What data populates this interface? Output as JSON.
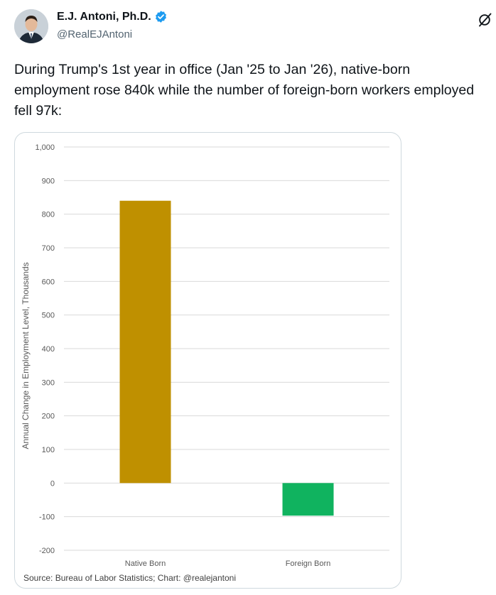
{
  "author": {
    "display_name": "E.J. Antoni, Ph.D.",
    "handle": "@RealEJAntoni",
    "verified": true
  },
  "icons": {
    "verified": "verified-badge-icon",
    "more": "grok-icon",
    "avatar": "profile-photo"
  },
  "tweet": {
    "text": "During Trump's 1st year in office (Jan '25 to Jan '26), native-born employment rose 840k while the number of foreign-born workers employed fell 97k:"
  },
  "colors": {
    "native_bar": "#bf9000",
    "foreign_bar": "#10b35f",
    "verified": "#1d9bf0"
  },
  "chart_data": {
    "type": "bar",
    "categories": [
      "Native Born",
      "Foreign Born"
    ],
    "values": [
      840,
      -97
    ],
    "bar_colors": [
      "#bf9000",
      "#10b35f"
    ],
    "ylabel": "Annual Change in Employment Level, Thousands",
    "xlabel": "",
    "ylim": [
      -200,
      1000
    ],
    "yticks": [
      -200,
      -100,
      0,
      100,
      200,
      300,
      400,
      500,
      600,
      700,
      800,
      900,
      1000
    ],
    "ytick_labels": [
      "-200",
      "-100",
      "0",
      "100",
      "200",
      "300",
      "400",
      "500",
      "600",
      "700",
      "800",
      "900",
      "1,000"
    ],
    "grid": true,
    "source": "Source: Bureau of Labor Statistics; Chart: @realejantoni"
  }
}
